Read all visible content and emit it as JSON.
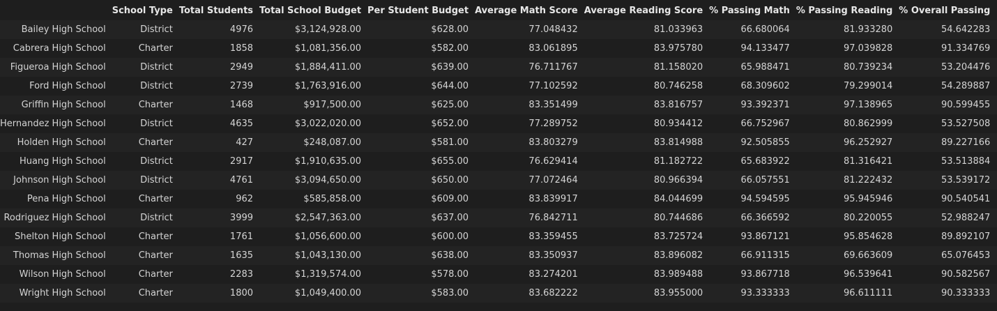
{
  "columns": [
    "",
    "School Type",
    "Total Students",
    "Total School Budget",
    "Per Student Budget",
    "Average Math Score",
    "Average Reading Score",
    "% Passing Math",
    "% Passing Reading",
    "% Overall Passing"
  ],
  "rows": [
    [
      "Bailey High School",
      "District",
      "4976",
      "$3,124,928.00",
      "$628.00",
      "77.048432",
      "81.033963",
      "66.680064",
      "81.933280",
      "54.642283"
    ],
    [
      "Cabrera High School",
      "Charter",
      "1858",
      "$1,081,356.00",
      "$582.00",
      "83.061895",
      "83.975780",
      "94.133477",
      "97.039828",
      "91.334769"
    ],
    [
      "Figueroa High School",
      "District",
      "2949",
      "$1,884,411.00",
      "$639.00",
      "76.711767",
      "81.158020",
      "65.988471",
      "80.739234",
      "53.204476"
    ],
    [
      "Ford High School",
      "District",
      "2739",
      "$1,763,916.00",
      "$644.00",
      "77.102592",
      "80.746258",
      "68.309602",
      "79.299014",
      "54.289887"
    ],
    [
      "Griffin High School",
      "Charter",
      "1468",
      "$917,500.00",
      "$625.00",
      "83.351499",
      "83.816757",
      "93.392371",
      "97.138965",
      "90.599455"
    ],
    [
      "Hernandez High School",
      "District",
      "4635",
      "$3,022,020.00",
      "$652.00",
      "77.289752",
      "80.934412",
      "66.752967",
      "80.862999",
      "53.527508"
    ],
    [
      "Holden High School",
      "Charter",
      "427",
      "$248,087.00",
      "$581.00",
      "83.803279",
      "83.814988",
      "92.505855",
      "96.252927",
      "89.227166"
    ],
    [
      "Huang High School",
      "District",
      "2917",
      "$1,910,635.00",
      "$655.00",
      "76.629414",
      "81.182722",
      "65.683922",
      "81.316421",
      "53.513884"
    ],
    [
      "Johnson High School",
      "District",
      "4761",
      "$3,094,650.00",
      "$650.00",
      "77.072464",
      "80.966394",
      "66.057551",
      "81.222432",
      "53.539172"
    ],
    [
      "Pena High School",
      "Charter",
      "962",
      "$585,858.00",
      "$609.00",
      "83.839917",
      "84.044699",
      "94.594595",
      "95.945946",
      "90.540541"
    ],
    [
      "Rodriguez High School",
      "District",
      "3999",
      "$2,547,363.00",
      "$637.00",
      "76.842711",
      "80.744686",
      "66.366592",
      "80.220055",
      "52.988247"
    ],
    [
      "Shelton High School",
      "Charter",
      "1761",
      "$1,056,600.00",
      "$600.00",
      "83.359455",
      "83.725724",
      "93.867121",
      "95.854628",
      "89.892107"
    ],
    [
      "Thomas High School",
      "Charter",
      "1635",
      "$1,043,130.00",
      "$638.00",
      "83.350937",
      "83.896082",
      "66.911315",
      "69.663609",
      "65.076453"
    ],
    [
      "Wilson High School",
      "Charter",
      "2283",
      "$1,319,574.00",
      "$578.00",
      "83.274201",
      "83.989488",
      "93.867718",
      "96.539641",
      "90.582567"
    ],
    [
      "Wright High School",
      "Charter",
      "1800",
      "$1,049,400.00",
      "$583.00",
      "83.682222",
      "83.955000",
      "93.333333",
      "96.611111",
      "90.333333"
    ]
  ]
}
